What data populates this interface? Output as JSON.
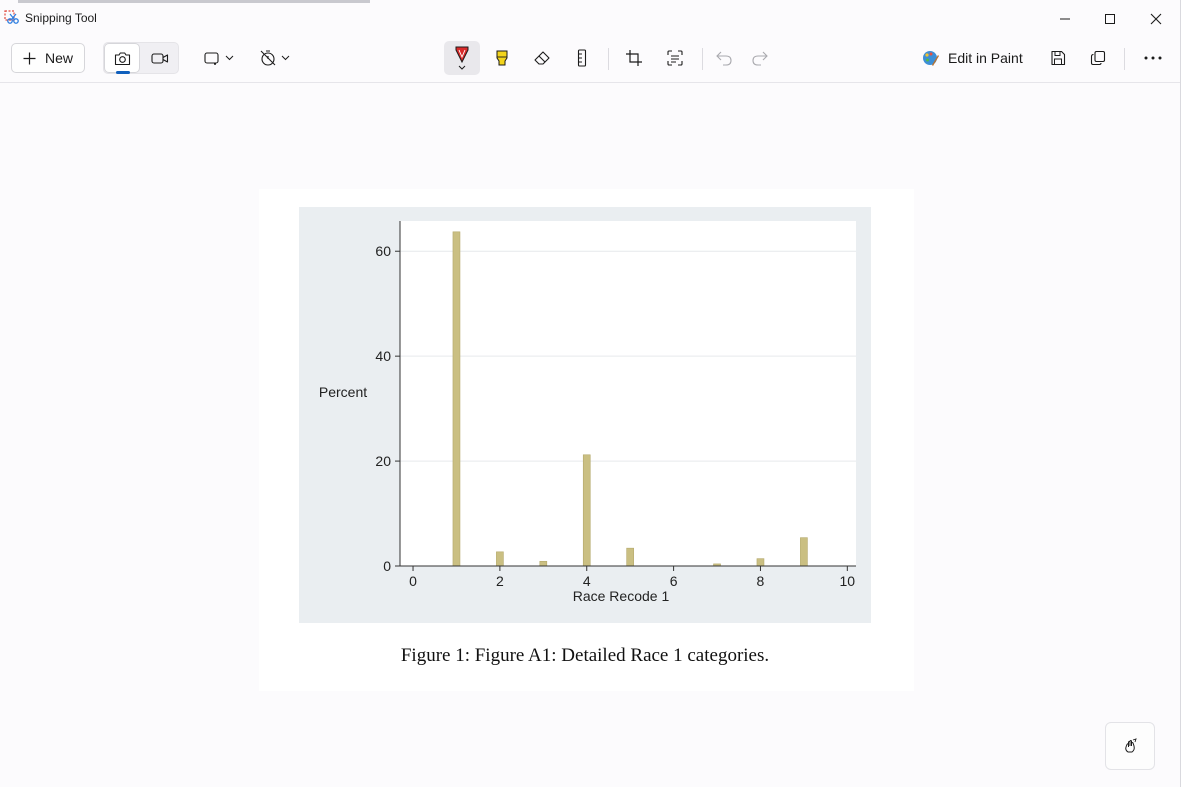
{
  "window": {
    "title": "Snipping Tool"
  },
  "toolbar": {
    "new_label": "New",
    "edit_in_paint_label": "Edit in Paint"
  },
  "colors": {
    "accent": "#0f5fbd",
    "bar": "#cabf82",
    "bar_edge": "#b4a86a",
    "figure_bg": "#eaeef1",
    "plot_bg": "#ffffff"
  },
  "figure": {
    "caption": "Figure 1: Figure A1: Detailed Race 1 categories."
  },
  "chart_data": {
    "type": "bar",
    "title": "",
    "xlabel": "Race Recode 1",
    "ylabel": "Percent",
    "x": [
      1,
      2,
      3,
      4,
      5,
      7,
      8,
      9
    ],
    "values": [
      63.7,
      2.7,
      0.9,
      21.2,
      3.4,
      0.4,
      1.4,
      5.4
    ],
    "xlim": [
      -0.3,
      10.2
    ],
    "ylim": [
      0,
      65
    ],
    "xticks": [
      0,
      2,
      4,
      6,
      8,
      10
    ],
    "yticks": [
      0,
      20,
      40,
      60
    ],
    "grid": true,
    "legend": "none"
  }
}
